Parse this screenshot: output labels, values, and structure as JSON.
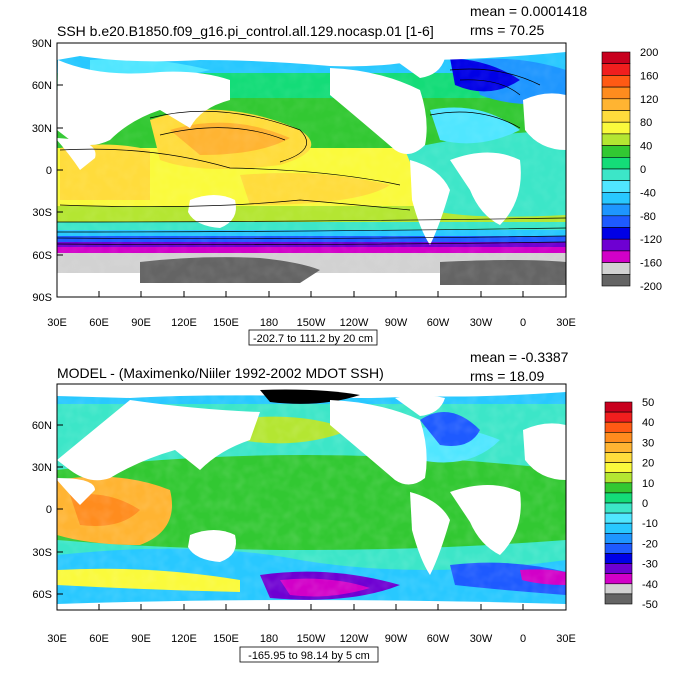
{
  "chart_data": [
    {
      "type": "heatmap",
      "title": "SSH b.e20.B1850.f09_g16.pi_control.all.129.nocasp.01 [1-6]",
      "mean_label": "mean = 0.0001418",
      "rms_label": "rms = 70.25",
      "range_label": "-202.7 to 111.2 by 20 cm",
      "xticks": [
        "30E",
        "60E",
        "90E",
        "120E",
        "150E",
        "180",
        "150W",
        "120W",
        "90W",
        "60W",
        "30W",
        "0",
        "30E"
      ],
      "yticks": [
        "90N",
        "60N",
        "30N",
        "0",
        "30S",
        "60S",
        "90S"
      ],
      "colorbar_labels": [
        "200",
        "160",
        "120",
        "80",
        "40",
        "0",
        "-40",
        "-80",
        "-120",
        "-160",
        "-200"
      ],
      "colorbar_colors": [
        "#c8001e",
        "#f01e1e",
        "#ff5a14",
        "#ff8c1e",
        "#ffb432",
        "#ffdc3c",
        "#fafa3c",
        "#b4e632",
        "#32c832",
        "#14dc78",
        "#3ce6c8",
        "#50e6ff",
        "#28c8ff",
        "#1e96ff",
        "#1e5aff",
        "#0000e6",
        "#6e00d2",
        "#d200c8",
        "#d2d2d2",
        "#646464"
      ]
    },
    {
      "type": "heatmap",
      "title": "MODEL - (Maximenko/Niiler 1992-2002 MDOT SSH)",
      "mean_label": "mean = -0.3387",
      "rms_label": "rms = 18.09",
      "range_label": "-165.95 to 98.14 by 5 cm",
      "xticks": [
        "30E",
        "60E",
        "90E",
        "120E",
        "150E",
        "180",
        "150W",
        "120W",
        "90W",
        "60W",
        "30W",
        "0",
        "30E"
      ],
      "yticks": [
        "60N",
        "30N",
        "0",
        "30S",
        "60S"
      ],
      "colorbar_labels": [
        "50",
        "40",
        "30",
        "20",
        "10",
        "0",
        "-10",
        "-20",
        "-30",
        "-40",
        "-50"
      ],
      "colorbar_colors": [
        "#c8001e",
        "#f01e1e",
        "#ff5a14",
        "#ff8c1e",
        "#ffb432",
        "#ffdc3c",
        "#fafa3c",
        "#b4e632",
        "#32c832",
        "#14dc78",
        "#3ce6c8",
        "#50e6ff",
        "#28c8ff",
        "#1e96ff",
        "#1e5aff",
        "#0000e6",
        "#6e00d2",
        "#d200c8",
        "#d2d2d2",
        "#646464"
      ]
    }
  ]
}
